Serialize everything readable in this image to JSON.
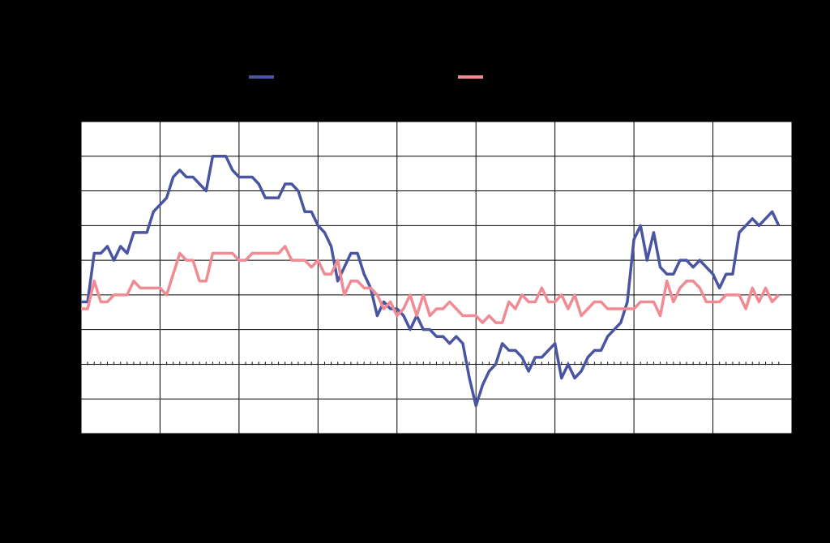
{
  "chart_data": {
    "type": "line",
    "x": [
      0,
      1,
      2,
      3,
      4,
      5,
      6,
      7,
      8,
      9,
      10,
      11,
      12,
      13,
      14,
      15,
      16,
      17,
      18,
      19,
      20,
      21,
      22,
      23,
      24,
      25,
      26,
      27,
      28,
      29,
      30,
      31,
      32,
      33,
      34,
      35,
      36,
      37,
      38,
      39,
      40,
      41,
      42,
      43,
      44,
      45,
      46,
      47,
      48,
      49,
      50,
      51,
      52,
      53,
      54,
      55,
      56,
      57,
      58,
      59,
      60,
      61,
      62,
      63,
      64,
      65,
      66,
      67,
      68,
      69,
      70,
      71,
      72,
      73,
      74,
      75,
      76,
      77,
      78,
      79,
      80,
      81,
      82,
      83,
      84,
      85,
      86,
      87,
      88,
      89,
      90,
      91,
      92,
      93,
      94,
      95,
      96,
      97,
      98,
      99,
      100,
      101,
      102,
      103,
      104,
      105,
      106
    ],
    "xlim": [
      0,
      108
    ],
    "xticks": [
      0,
      12,
      24,
      36,
      48,
      60,
      72,
      84,
      96,
      108
    ],
    "ylim": [
      -2,
      7
    ],
    "yticks": [
      -2,
      -1,
      0,
      1,
      2,
      3,
      4,
      5,
      6,
      7
    ],
    "grid": true,
    "series": [
      {
        "color": "#4a55a2",
        "values": [
          1.8,
          1.8,
          3.2,
          3.2,
          3.4,
          3.0,
          3.4,
          3.2,
          3.8,
          3.8,
          3.8,
          4.4,
          4.6,
          4.8,
          5.4,
          5.6,
          5.4,
          5.4,
          5.2,
          5.0,
          6.0,
          6.0,
          6.0,
          5.6,
          5.4,
          5.4,
          5.4,
          5.2,
          4.8,
          4.8,
          4.8,
          5.2,
          5.2,
          5.0,
          4.4,
          4.4,
          4.0,
          3.8,
          3.4,
          2.4,
          2.8,
          3.2,
          3.2,
          2.6,
          2.2,
          1.4,
          1.8,
          1.6,
          1.6,
          1.4,
          1.0,
          1.4,
          1.0,
          1.0,
          0.8,
          0.8,
          0.6,
          0.8,
          0.6,
          -0.4,
          -1.2,
          -0.6,
          -0.2,
          0,
          0.6,
          0.4,
          0.4,
          0.2,
          -0.2,
          0.2,
          0.2,
          0.4,
          0.6,
          -0.4,
          0,
          -0.4,
          -0.2,
          0.2,
          0.4,
          0.4,
          0.8,
          1.0,
          1.2,
          1.8,
          3.6,
          4.0,
          3.0,
          3.8,
          2.8,
          2.6,
          2.6,
          3.0,
          3.0,
          2.8,
          3.0,
          2.8,
          2.6,
          2.2,
          2.6,
          2.6,
          3.8,
          4.0,
          4.2,
          4.0,
          4.2,
          4.4,
          4.0
        ]
      },
      {
        "color": "#f08a93",
        "values": [
          1.6,
          1.6,
          2.4,
          1.8,
          1.8,
          2.0,
          2.0,
          2.0,
          2.4,
          2.2,
          2.2,
          2.2,
          2.2,
          2.0,
          2.6,
          3.2,
          3.0,
          3.0,
          2.4,
          2.4,
          3.2,
          3.2,
          3.2,
          3.2,
          3.0,
          3.0,
          3.2,
          3.2,
          3.2,
          3.2,
          3.2,
          3.4,
          3.0,
          3.0,
          3.0,
          2.8,
          3.0,
          2.6,
          2.6,
          3.0,
          2.0,
          2.4,
          2.4,
          2.2,
          2.2,
          2.0,
          1.6,
          1.8,
          1.4,
          1.6,
          2.0,
          1.4,
          2.0,
          1.4,
          1.6,
          1.6,
          1.8,
          1.6,
          1.4,
          1.4,
          1.4,
          1.2,
          1.4,
          1.2,
          1.2,
          1.8,
          1.6,
          2.0,
          1.8,
          1.8,
          2.2,
          1.8,
          1.8,
          2.0,
          1.6,
          2.0,
          1.4,
          1.6,
          1.8,
          1.8,
          1.6,
          1.6,
          1.6,
          1.6,
          1.6,
          1.8,
          1.8,
          1.8,
          1.4,
          2.4,
          1.8,
          2.2,
          2.4,
          2.4,
          2.2,
          1.8,
          1.8,
          1.8,
          2.0,
          2.0,
          2.0,
          1.6,
          2.2,
          1.8,
          2.2,
          1.8,
          2.0
        ]
      }
    ]
  }
}
